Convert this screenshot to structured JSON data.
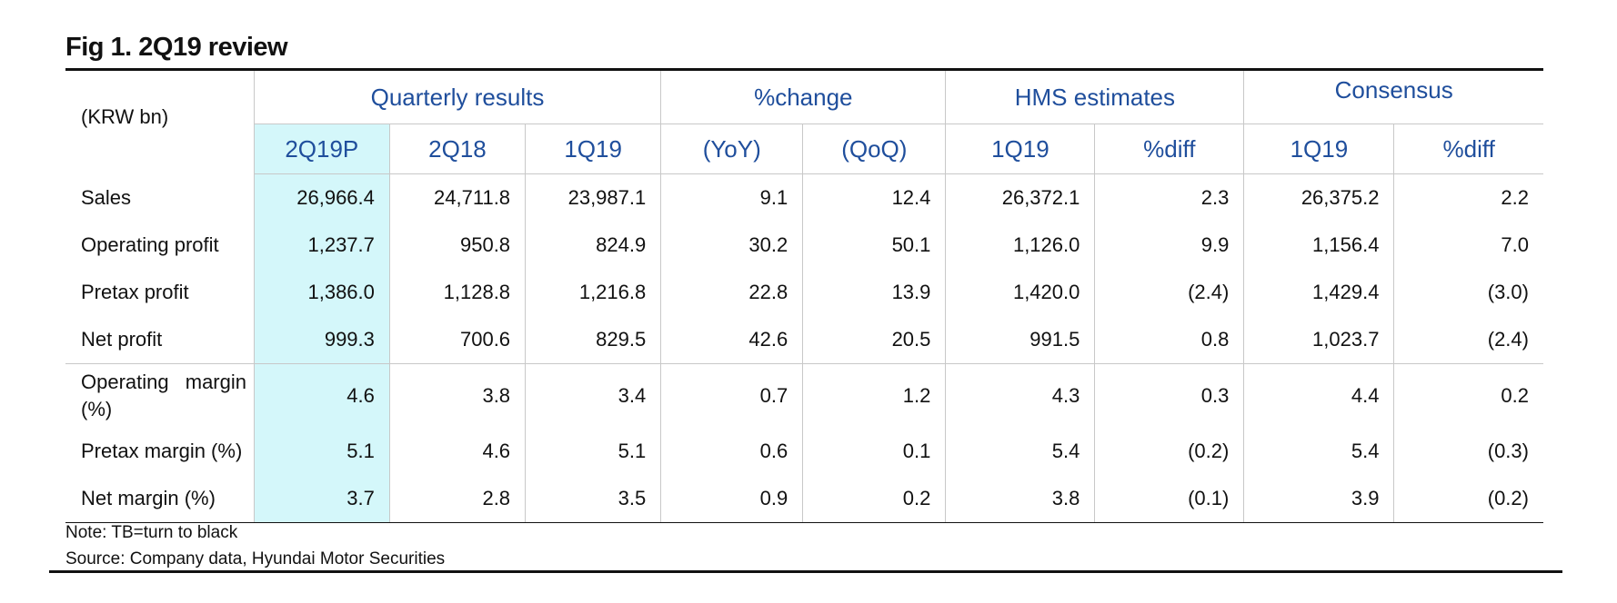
{
  "figure": {
    "title": "Fig 1. 2Q19 review",
    "unit_label": "(KRW bn)"
  },
  "header": {
    "groups": [
      "Quarterly results",
      "%change",
      "HMS estimates",
      "Consensus"
    ],
    "columns": [
      "2Q19P",
      "2Q18",
      "1Q19",
      "(YoY)",
      "(QoQ)",
      "1Q19",
      "%diff",
      "1Q19",
      "%diff"
    ]
  },
  "rows": [
    {
      "label": "Sales",
      "values": [
        "26,966.4",
        "24,711.8",
        "23,987.1",
        "9.1",
        "12.4",
        "26,372.1",
        "2.3",
        "26,375.2",
        "2.2"
      ]
    },
    {
      "label": "Operating profit",
      "values": [
        "1,237.7",
        "950.8",
        "824.9",
        "30.2",
        "50.1",
        "1,126.0",
        "9.9",
        "1,156.4",
        "7.0"
      ]
    },
    {
      "label": "Pretax profit",
      "values": [
        "1,386.0",
        "1,128.8",
        "1,216.8",
        "22.8",
        "13.9",
        "1,420.0",
        "(2.4)",
        "1,429.4",
        "(3.0)"
      ]
    },
    {
      "label": "Net profit",
      "values": [
        "999.3",
        "700.6",
        "829.5",
        "42.6",
        "20.5",
        "991.5",
        "0.8",
        "1,023.7",
        "(2.4)"
      ]
    },
    {
      "label_word1": "Operating",
      "label_word2": "margin",
      "label_line2": "(%)",
      "values": [
        "4.6",
        "3.8",
        "3.4",
        "0.7",
        "1.2",
        "4.3",
        "0.3",
        "4.4",
        "0.2"
      ]
    },
    {
      "label": "Pretax margin (%)",
      "values": [
        "5.1",
        "4.6",
        "5.1",
        "0.6",
        "0.1",
        "5.4",
        "(0.2)",
        "5.4",
        "(0.3)"
      ]
    },
    {
      "label": "Net margin (%)",
      "values": [
        "3.7",
        "2.8",
        "3.5",
        "0.9",
        "0.2",
        "3.8",
        "(0.1)",
        "3.9",
        "(0.2)"
      ]
    }
  ],
  "notes": {
    "note": "Note: TB=turn to black",
    "source": "Source: Company data, Hyundai Motor Securities"
  },
  "colors": {
    "header_text": "#1f4e9c",
    "highlight_column": "#d4f7fa",
    "rule": "#111111"
  }
}
